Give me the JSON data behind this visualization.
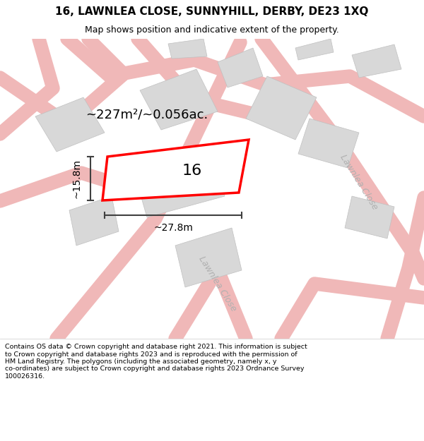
{
  "title": "16, LAWNLEA CLOSE, SUNNYHILL, DERBY, DE23 1XQ",
  "subtitle": "Map shows position and indicative extent of the property.",
  "footer_text": "Contains OS data © Crown copyright and database right 2021. This information is subject\nto Crown copyright and database rights 2023 and is reproduced with the permission of\nHM Land Registry. The polygons (including the associated geometry, namely x, y\nco-ordinates) are subject to Crown copyright and database rights 2023 Ordnance Survey\n100026316.",
  "background_color": "#ffffff",
  "map_bg_color": "#f5f0f0",
  "area_text": "~227m²/~0.056ac.",
  "property_number": "16",
  "dim_width": "~27.8m",
  "dim_height": "~15.8m",
  "road_label_1": "Lawnlea Close",
  "road_label_2": "Lawnlea Close",
  "plot_color": "#ff0000",
  "plot_fill": "#ffffff",
  "road_color": "#f0b8b8",
  "building_color": "#d8d8d8",
  "building_edge": "#c0c0c0",
  "dim_color": "#404040"
}
